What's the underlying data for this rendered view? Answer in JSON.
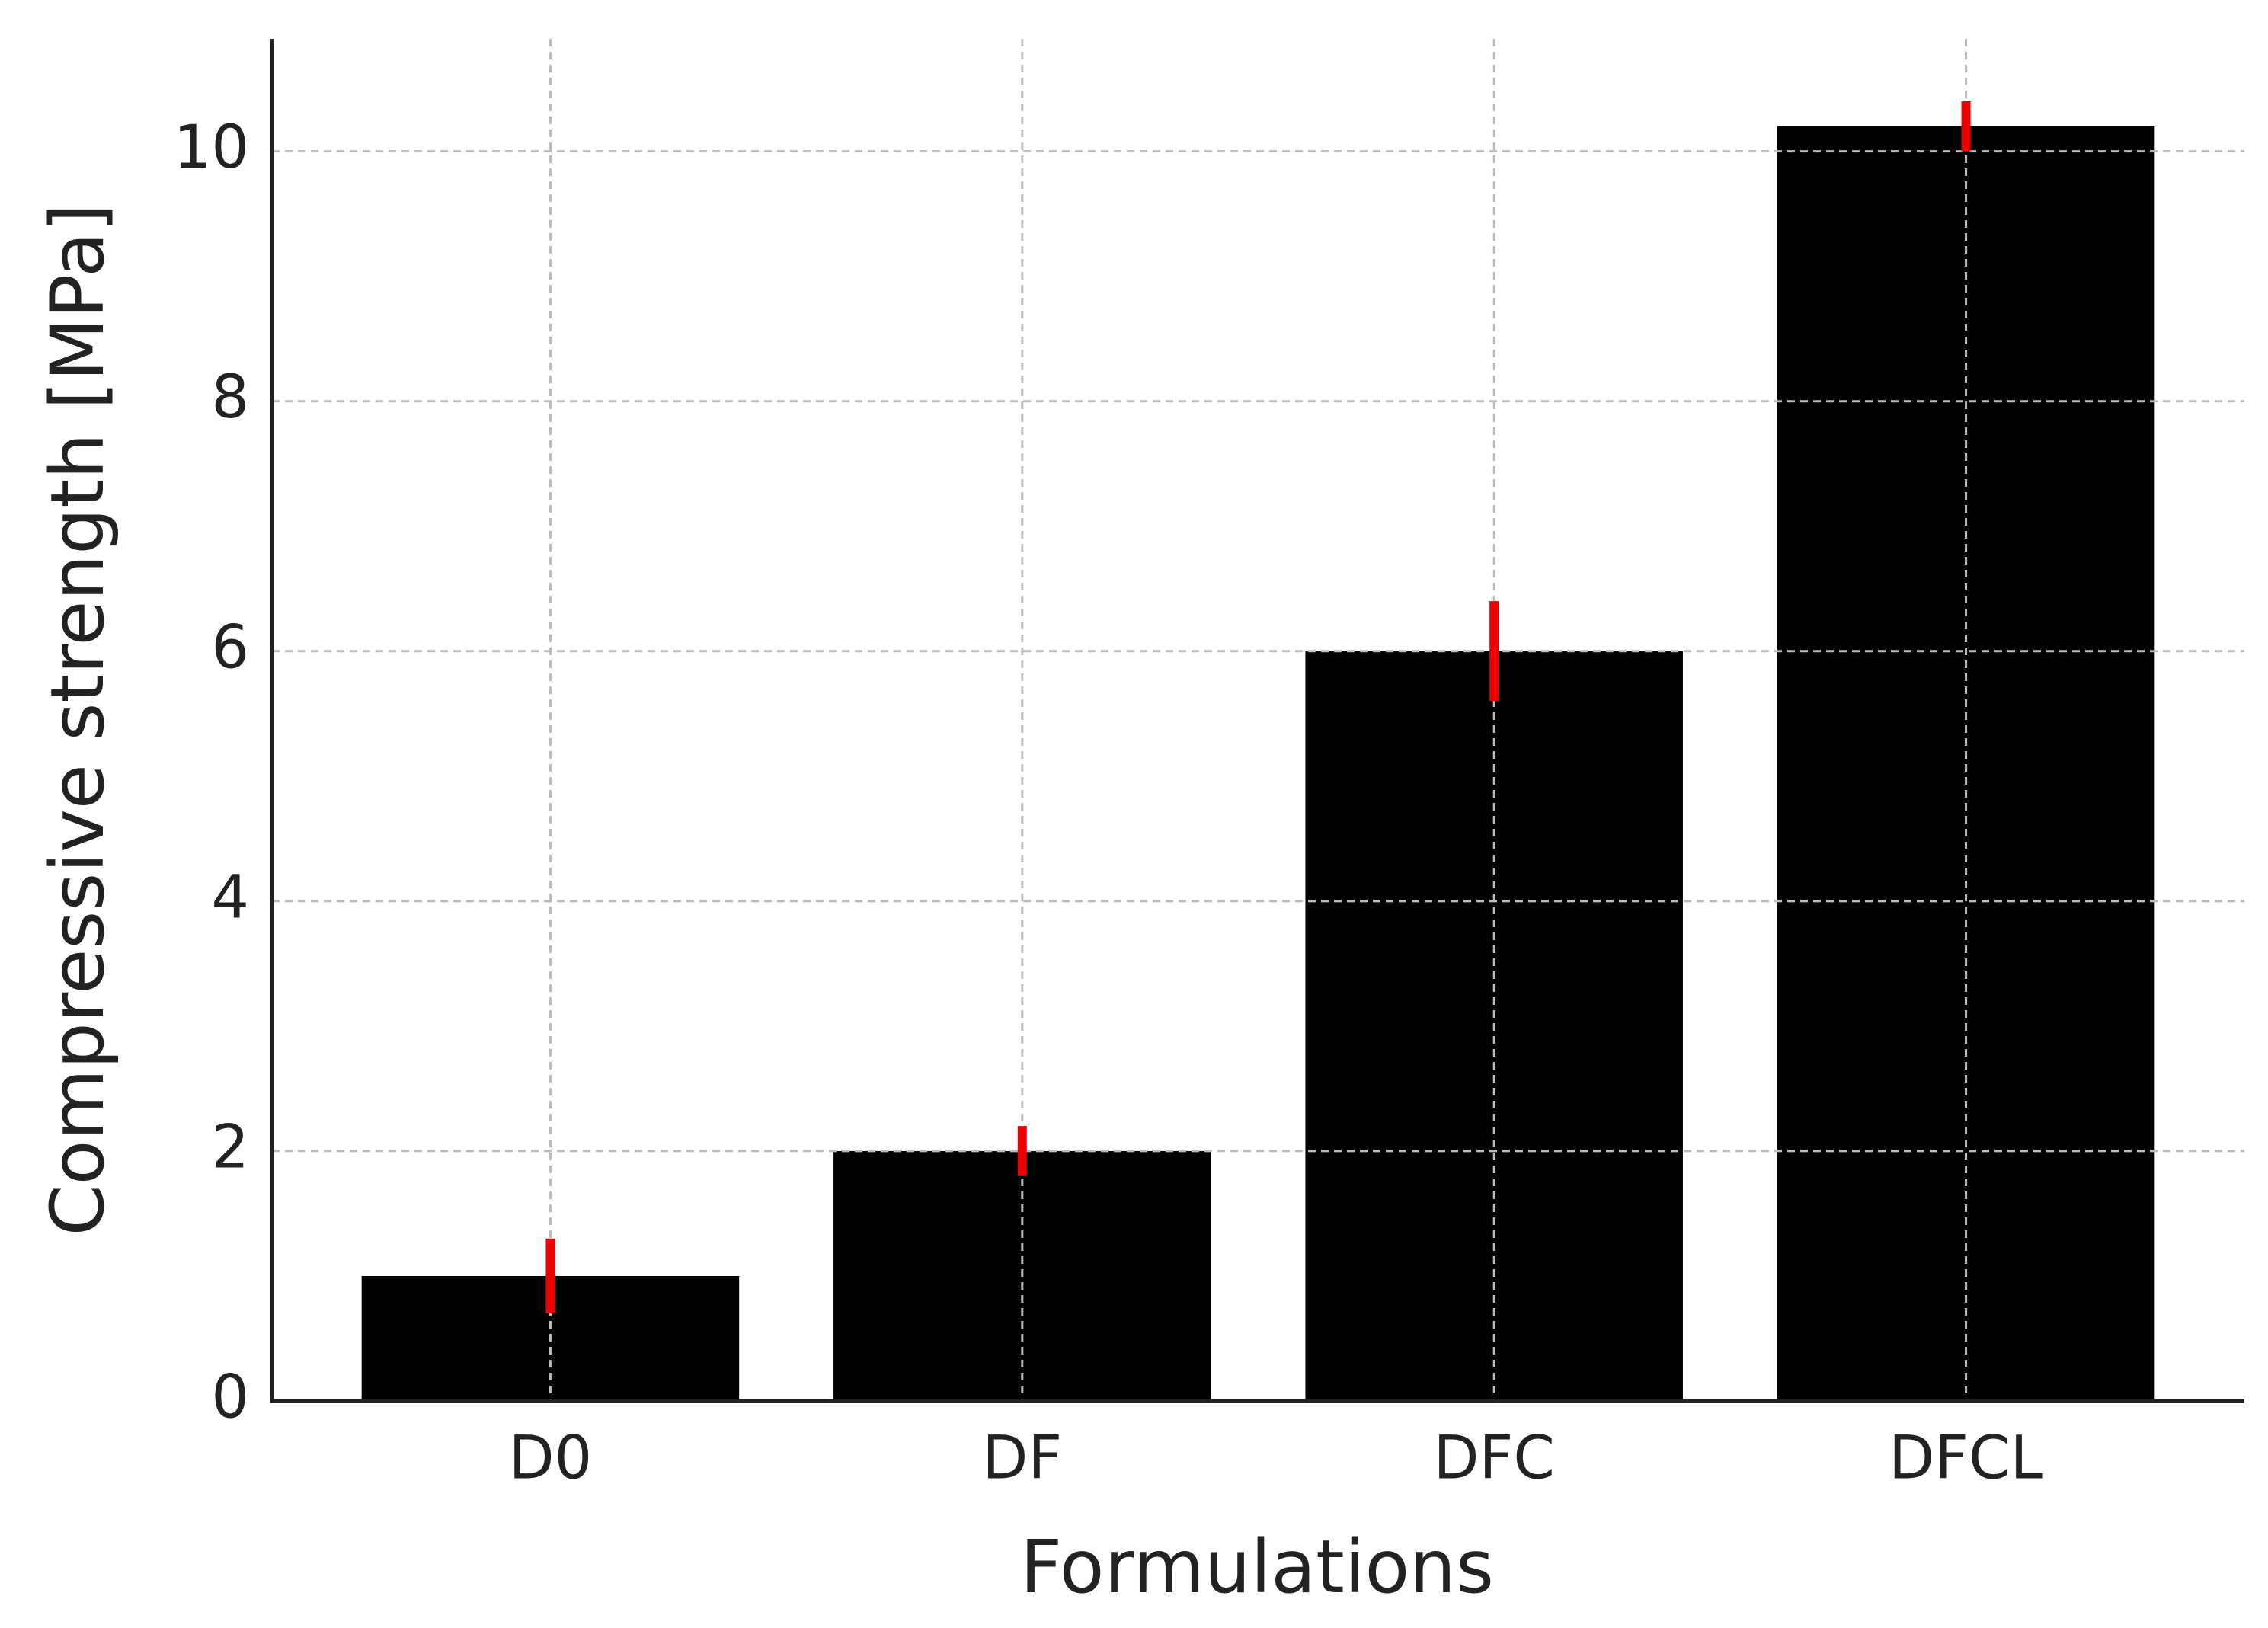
{
  "chart_data": {
    "type": "bar",
    "x_label": "Formulations",
    "y_label": "Compressive strength [MPa]",
    "categories": [
      "D0",
      "DF",
      "DFC",
      "DFCL"
    ],
    "values": [
      1.0,
      2.0,
      6.0,
      10.2
    ],
    "errors": [
      0.3,
      0.2,
      0.4,
      0.2
    ],
    "color": "#000000",
    "error_color": "#ee0000",
    "ylim": [
      0,
      10.9
    ],
    "yticks": [
      0,
      2,
      4,
      6,
      8,
      10
    ],
    "grid": true
  }
}
